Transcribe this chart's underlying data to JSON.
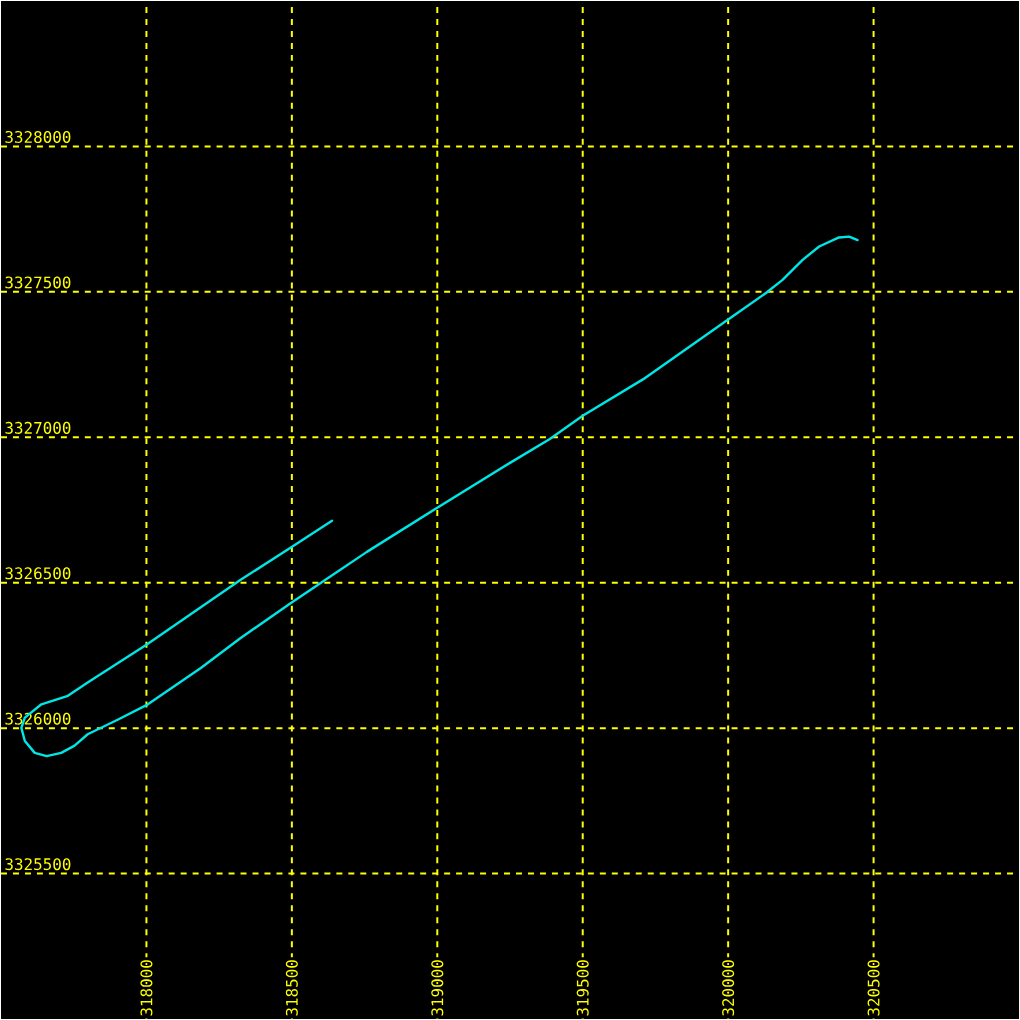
{
  "chart_data": {
    "type": "line",
    "x": [
      318638,
      318498,
      318324,
      318000,
      317798,
      317730,
      317639,
      317582,
      317570,
      317582,
      317616,
      317657,
      317707,
      317753,
      317798,
      317901,
      318000,
      318187,
      318324,
      318498,
      318599,
      318758,
      319000,
      319250,
      319387,
      319500,
      319707,
      320000,
      320130,
      320187,
      320256,
      320313,
      320381,
      320416,
      320445
    ],
    "values": [
      3326713,
      3326622,
      3326510,
      3326287,
      3326157,
      3326111,
      3326082,
      3326036,
      3326001,
      3325956,
      3325915,
      3325904,
      3325915,
      3325940,
      3325979,
      3326029,
      3326079,
      3326207,
      3326310,
      3326431,
      3326499,
      3326606,
      3326758,
      3326912,
      3326994,
      3327074,
      3327199,
      3327405,
      3327496,
      3327541,
      3327610,
      3327656,
      3327687,
      3327690,
      3327678
    ],
    "color": "#00e5e5",
    "xlim": [
      317500,
      321000
    ],
    "ylim": [
      3325000,
      3328500
    ],
    "xticks": [
      318000,
      318500,
      319000,
      319500,
      320000,
      320500
    ],
    "yticks": [
      3325500,
      3326000,
      3326500,
      3327000,
      3327500,
      3328000
    ],
    "grid": true
  }
}
